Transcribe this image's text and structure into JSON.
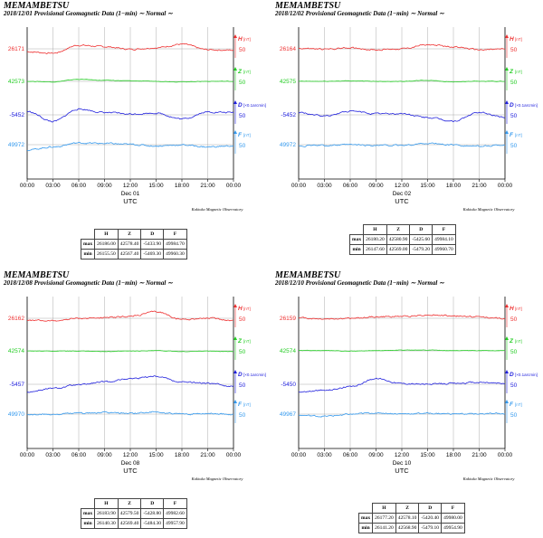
{
  "colors": {
    "H": "#ee3030",
    "Z": "#22cc22",
    "D": "#2020dd",
    "F": "#3399ee",
    "axis": "#000000",
    "grid": "#999999",
    "label": "#555555"
  },
  "x_tick_labels": [
    "00:00",
    "03:00",
    "06:00",
    "09:00",
    "12:00",
    "15:00",
    "18:00",
    "21:00",
    "00:00"
  ],
  "x_unit": "UTC",
  "observatory": "Kakioka Magnetic Observatory",
  "table_header": [
    "H",
    "Z",
    "D",
    "F"
  ],
  "panels": [
    {
      "station": "MEMAMBETSU",
      "subtitle": "2018/12/01  Provisional Geomagnetic Data (1−min)  ∼ Normal ∼",
      "date_label": "Dec 01",
      "table": [
        {
          "label": "max",
          "H": "26186.00",
          "Z": "42578.40",
          "D": "-5433.90",
          "F": "49984.70"
        },
        {
          "label": "min",
          "H": "26155.50",
          "Z": "42567.40",
          "D": "-5469.30",
          "F": "49960.30"
        }
      ]
    },
    {
      "station": "MEMAMBETSU",
      "subtitle": "2018/12/02  Provisional Geomagnetic Data (1−min)  ∼ Normal ∼",
      "date_label": "Dec 02",
      "table": [
        {
          "label": "max",
          "H": "26180.20",
          "Z": "42580.90",
          "D": "-5425.60",
          "F": "49984.10"
        },
        {
          "label": "min",
          "H": "26147.60",
          "Z": "42569.00",
          "D": "-5479.20",
          "F": "49960.70"
        }
      ]
    },
    {
      "station": "MEMAMBETSU",
      "subtitle": "2018/12/08  Provisional Geomagnetic Data (1−min)  ∼ Normal ∼",
      "date_label": "Dec 08",
      "table": [
        {
          "label": "max",
          "H": "26183.90",
          "Z": "42579.50",
          "D": "-5428.80",
          "F": "49982.60"
        },
        {
          "label": "min",
          "H": "26140.30",
          "Z": "42569.40",
          "D": "-5484.30",
          "F": "49957.90"
        }
      ]
    },
    {
      "station": "MEMAMBETSU",
      "subtitle": "2018/12/10  Provisional Geomagnetic Data (1−min)  ∼ Normal ∼",
      "date_label": "Dec 10",
      "table": [
        {
          "label": "max",
          "H": "26177.20",
          "Z": "42578.10",
          "D": "-5420.40",
          "F": "49980.00"
        },
        {
          "label": "min",
          "H": "26141.20",
          "Z": "42568.90",
          "D": "-5479.10",
          "F": "49954.90"
        }
      ]
    }
  ],
  "chart_data": [
    {
      "type": "line",
      "x": [
        "00:00",
        "03:00",
        "06:00",
        "09:00",
        "12:00",
        "15:00",
        "18:00",
        "21:00",
        "00:00"
      ],
      "xlabel": "UTC",
      "series": [
        {
          "name": "H",
          "unit": "nT",
          "scale": "50",
          "baseline_label": "26171",
          "values": [
            26165,
            26162,
            26178,
            26175,
            26170,
            26173,
            26180,
            26169,
            26168
          ],
          "range": [
            26155.5,
            26186.0
          ]
        },
        {
          "name": "Z",
          "unit": "nT",
          "scale": "50",
          "baseline_label": "42573",
          "values": [
            42573,
            42572,
            42577,
            42575,
            42574,
            42573,
            42572,
            42573,
            42573
          ],
          "range": [
            42567.4,
            42578.4
          ]
        },
        {
          "name": "D",
          "unit": "×0.1arcmin",
          "scale": "50",
          "baseline_label": "-5452",
          "values": [
            -5445,
            -5465,
            -5440,
            -5447,
            -5450,
            -5448,
            -5460,
            -5446,
            -5447
          ],
          "range": [
            -5469.3,
            -5433.9
          ]
        },
        {
          "name": "F",
          "unit": "nT",
          "scale": "50",
          "baseline_label": "49972",
          "values": [
            49962,
            49968,
            49976,
            49975,
            49973,
            49970,
            49972,
            49968,
            49970
          ],
          "range": [
            49960.3,
            49984.7
          ]
        }
      ]
    },
    {
      "type": "line",
      "x": [
        "00:00",
        "03:00",
        "06:00",
        "09:00",
        "12:00",
        "15:00",
        "18:00",
        "21:00",
        "00:00"
      ],
      "xlabel": "UTC",
      "series": [
        {
          "name": "H",
          "unit": "nT",
          "scale": "50",
          "baseline_label": "26164",
          "values": [
            26165,
            26163,
            26166,
            26162,
            26164,
            26172,
            26168,
            26162,
            26163
          ],
          "range": [
            26147.6,
            26180.2
          ]
        },
        {
          "name": "Z",
          "unit": "nT",
          "scale": "50",
          "baseline_label": "42575",
          "values": [
            42575,
            42575,
            42576,
            42575,
            42575,
            42577,
            42574,
            42575,
            42575
          ],
          "range": [
            42569.0,
            42580.9
          ]
        },
        {
          "name": "D",
          "unit": "×0.1arcmin",
          "scale": "50",
          "baseline_label": "-5452",
          "values": [
            -5448,
            -5455,
            -5445,
            -5450,
            -5450,
            -5458,
            -5465,
            -5448,
            -5457
          ],
          "range": [
            -5479.2,
            -5425.6
          ]
        },
        {
          "name": "F",
          "unit": "nT",
          "scale": "50",
          "baseline_label": "49972",
          "values": [
            49970,
            49971,
            49972,
            49971,
            49971,
            49975,
            49972,
            49969,
            49972
          ],
          "range": [
            49960.7,
            49984.1
          ]
        }
      ]
    },
    {
      "type": "line",
      "x": [
        "00:00",
        "03:00",
        "06:00",
        "09:00",
        "12:00",
        "15:00",
        "18:00",
        "21:00",
        "00:00"
      ],
      "xlabel": "UTC",
      "series": [
        {
          "name": "H",
          "unit": "nT",
          "scale": "50",
          "baseline_label": "26162",
          "values": [
            26158,
            26157,
            26162,
            26163,
            26166,
            26175,
            26160,
            26162,
            26158
          ],
          "range": [
            26140.3,
            26183.9
          ]
        },
        {
          "name": "Z",
          "unit": "nT",
          "scale": "50",
          "baseline_label": "42574",
          "values": [
            42574,
            42574,
            42574,
            42573,
            42574,
            42575,
            42573,
            42574,
            42573
          ],
          "range": [
            42569.4,
            42579.5
          ]
        },
        {
          "name": "D",
          "unit": "×0.1arcmin",
          "scale": "50",
          "baseline_label": "-5457",
          "values": [
            -5472,
            -5465,
            -5458,
            -5452,
            -5445,
            -5440,
            -5452,
            -5455,
            -5460
          ],
          "range": [
            -5484.3,
            -5428.8
          ]
        },
        {
          "name": "F",
          "unit": "nT",
          "scale": "50",
          "baseline_label": "49970",
          "values": [
            49969,
            49970,
            49972,
            49973,
            49972,
            49974,
            49970,
            49972,
            49970
          ],
          "range": [
            49957.9,
            49982.6
          ]
        }
      ]
    },
    {
      "type": "line",
      "x": [
        "00:00",
        "03:00",
        "06:00",
        "09:00",
        "12:00",
        "15:00",
        "18:00",
        "21:00",
        "00:00"
      ],
      "xlabel": "UTC",
      "series": [
        {
          "name": "H",
          "unit": "nT",
          "scale": "50",
          "baseline_label": "26159",
          "values": [
            26160,
            26158,
            26159,
            26162,
            26163,
            26166,
            26164,
            26162,
            26158
          ],
          "range": [
            26141.2,
            26177.2
          ]
        },
        {
          "name": "Z",
          "unit": "nT",
          "scale": "50",
          "baseline_label": "42574",
          "values": [
            42574,
            42574,
            42573,
            42574,
            42575,
            42575,
            42574,
            42574,
            42574
          ],
          "range": [
            42568.9,
            42578.1
          ]
        },
        {
          "name": "D",
          "unit": "×0.1arcmin",
          "scale": "50",
          "baseline_label": "-5450",
          "values": [
            -5465,
            -5462,
            -5455,
            -5438,
            -5448,
            -5450,
            -5448,
            -5446,
            -5448
          ],
          "range": [
            -5479.1,
            -5420.4
          ]
        },
        {
          "name": "F",
          "unit": "nT",
          "scale": "50",
          "baseline_label": "49967",
          "values": [
            49965,
            49963,
            49967,
            49970,
            49968,
            49969,
            49968,
            49968,
            49968
          ],
          "range": [
            49954.9,
            49980.0
          ]
        }
      ]
    }
  ]
}
